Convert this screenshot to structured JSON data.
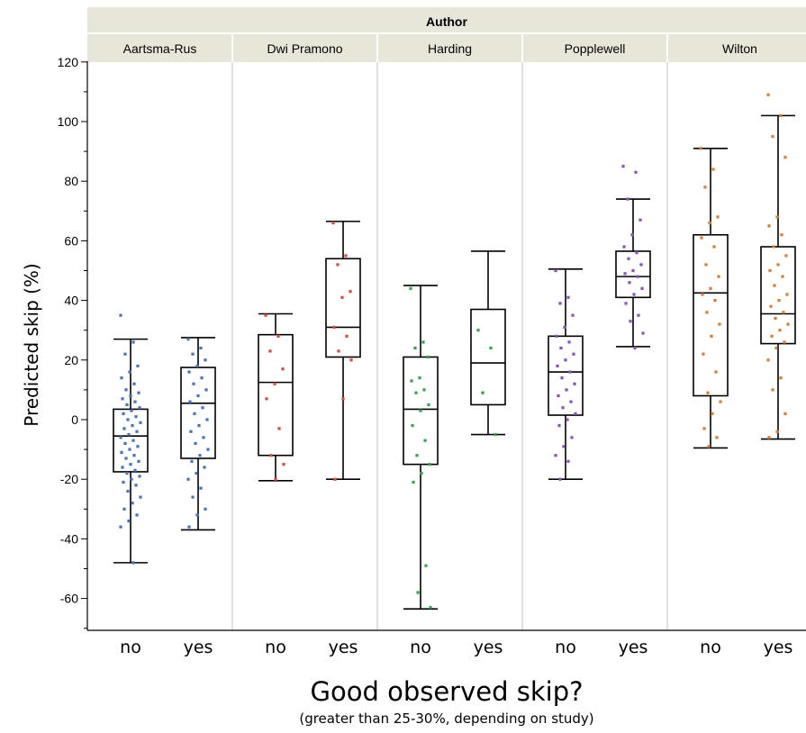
{
  "chart_data": {
    "type": "box",
    "facet_title": "Author",
    "facets": [
      "Aartsma-Rus",
      "Dwi Pramono",
      "Harding",
      "Popplewell",
      "Wilton"
    ],
    "categories": [
      "no",
      "yes"
    ],
    "ylabel": "Predicted skip (%)",
    "xlabel": "Good observed skip?",
    "xlabel_sub": "(greater than 25-30%, depending on study)",
    "ylim": [
      -70,
      120
    ],
    "yticks": [
      -60,
      -40,
      -20,
      0,
      20,
      40,
      60,
      80,
      100,
      120
    ],
    "colors": {
      "Aartsma-Rus": "#4472c4",
      "Dwi Pramono": "#e0463a",
      "Harding": "#2aa84a",
      "Popplewell": "#8a4fc4",
      "Wilton": "#e07b2a",
      "header_bg": "#e8e6d9",
      "box": "#000000"
    },
    "boxes": [
      {
        "facet": "Aartsma-Rus",
        "group": "no",
        "min": -48,
        "q1": -17.5,
        "median": -5.5,
        "q3": 3.5,
        "max": 27
      },
      {
        "facet": "Aartsma-Rus",
        "group": "yes",
        "min": -37,
        "q1": -13,
        "median": 5.5,
        "q3": 17.5,
        "max": 27.5
      },
      {
        "facet": "Dwi Pramono",
        "group": "no",
        "min": -20.5,
        "q1": -12,
        "median": 12.5,
        "q3": 28.5,
        "max": 35.5
      },
      {
        "facet": "Dwi Pramono",
        "group": "yes",
        "min": -20,
        "q1": 21,
        "median": 31,
        "q3": 54,
        "max": 66.5
      },
      {
        "facet": "Harding",
        "group": "no",
        "min": -63.5,
        "q1": -15,
        "median": 3.5,
        "q3": 21,
        "max": 45
      },
      {
        "facet": "Harding",
        "group": "yes",
        "min": -5,
        "q1": 5,
        "median": 19,
        "q3": 37,
        "max": 56.5
      },
      {
        "facet": "Popplewell",
        "group": "no",
        "min": -20,
        "q1": 1.5,
        "median": 16,
        "q3": 28,
        "max": 50.5
      },
      {
        "facet": "Popplewell",
        "group": "yes",
        "min": 24.5,
        "q1": 41,
        "median": 48,
        "q3": 56.5,
        "max": 74
      },
      {
        "facet": "Wilton",
        "group": "no",
        "min": -9.5,
        "q1": 8,
        "median": 42.5,
        "q3": 62,
        "max": 91
      },
      {
        "facet": "Wilton",
        "group": "yes",
        "min": -6.5,
        "q1": 25.5,
        "median": 35.5,
        "q3": 58,
        "max": 102
      }
    ],
    "points": [
      {
        "facet": "Aartsma-Rus",
        "group": "no",
        "values": [
          35,
          26,
          22,
          18,
          16,
          14,
          12,
          10,
          9,
          8,
          7,
          6,
          5,
          4,
          3,
          2,
          1,
          0,
          -1,
          -2,
          -3,
          -4,
          -5,
          -6,
          -7,
          -8,
          -9,
          -10,
          -11,
          -12,
          -13,
          -14,
          -15,
          -16,
          -17,
          -18,
          -19,
          -20,
          -21,
          -22,
          -24,
          -26,
          -28,
          -30,
          -32,
          -34,
          -36,
          -48
        ]
      },
      {
        "facet": "Aartsma-Rus",
        "group": "yes",
        "values": [
          27,
          24,
          22,
          20,
          18,
          16,
          14,
          12,
          10,
          8,
          6,
          4,
          2,
          0,
          -2,
          -4,
          -6,
          -8,
          -10,
          -12,
          -14,
          -16,
          -18,
          -20,
          -23,
          -26,
          -30,
          -32,
          -36
        ]
      },
      {
        "facet": "Dwi Pramono",
        "group": "no",
        "values": [
          35,
          28,
          23,
          17,
          12,
          7,
          -3,
          -12,
          -15,
          -20
        ]
      },
      {
        "facet": "Dwi Pramono",
        "group": "yes",
        "values": [
          66,
          55,
          52,
          43,
          41,
          31,
          28,
          23,
          20,
          7,
          -20
        ]
      },
      {
        "facet": "Harding",
        "group": "no",
        "values": [
          44,
          26,
          24,
          21,
          14,
          13,
          10,
          9,
          5,
          3,
          -2,
          -7,
          -12,
          -15,
          -18,
          -21,
          -49,
          -58,
          -63
        ]
      },
      {
        "facet": "Harding",
        "group": "yes",
        "values": [
          30,
          24,
          9,
          -5
        ]
      },
      {
        "facet": "Popplewell",
        "group": "no",
        "values": [
          50,
          41,
          39,
          35,
          31,
          28,
          26,
          24,
          22,
          20,
          18,
          16,
          14,
          12,
          10,
          8,
          6,
          4,
          2,
          0,
          -2,
          -6,
          -9,
          -12,
          -14,
          -20
        ]
      },
      {
        "facet": "Popplewell",
        "group": "yes",
        "values": [
          85,
          83,
          74,
          67,
          62,
          58,
          56,
          54,
          52,
          50,
          49,
          48,
          46,
          44,
          42,
          39,
          35,
          33,
          29,
          24
        ]
      },
      {
        "facet": "Wilton",
        "group": "no",
        "values": [
          91,
          84,
          78,
          68,
          66,
          61,
          58,
          52,
          48,
          44,
          42,
          40,
          36,
          32,
          28,
          22,
          16,
          9,
          6,
          2,
          -3,
          -6,
          -9
        ]
      },
      {
        "facet": "Wilton",
        "group": "yes",
        "values": [
          109,
          102,
          95,
          88,
          68,
          65,
          62,
          58,
          55,
          52,
          50,
          48,
          45,
          42,
          40,
          38,
          36,
          34,
          32,
          30,
          28,
          26,
          24,
          20,
          14,
          10,
          2,
          -4,
          -6
        ]
      }
    ]
  }
}
